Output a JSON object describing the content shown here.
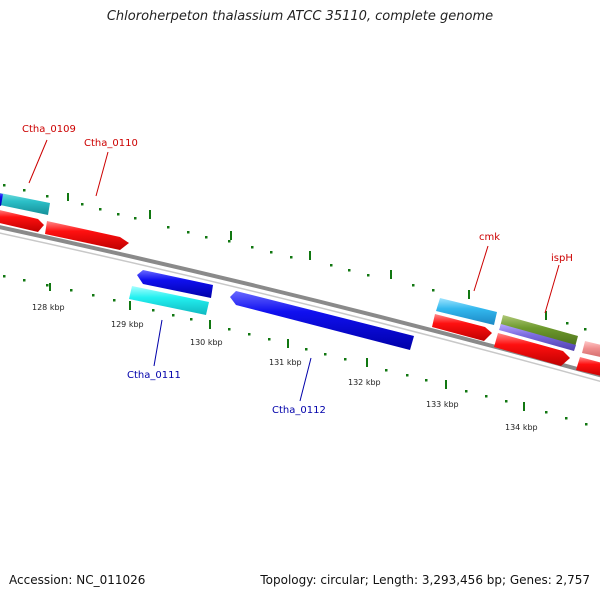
{
  "title": "Chloroherpeton thalassium ATCC 35110, complete genome",
  "footer": {
    "accession": "Accession: NC_011026",
    "summary": "Topology: circular; Length: 3,293,456 bp; Genes: 2,757"
  },
  "colors": {
    "forward_cds": "#ff0000",
    "reverse_cds": "#0000ee",
    "forward_label": "#cc0000",
    "reverse_label": "#0000aa",
    "backbone": "#888888",
    "tick": "#117711"
  },
  "scale_labels": [
    "128 kbp",
    "129 kbp",
    "130 kbp",
    "131 kbp",
    "132 kbp",
    "133 kbp",
    "134 kbp"
  ],
  "gene_labels": {
    "ctha_0109": "Ctha_0109",
    "ctha_0110": "Ctha_0110",
    "cmk": "cmk",
    "isph": "ispH",
    "ctha_0111": "Ctha_0111",
    "ctha_0112": "Ctha_0112"
  }
}
